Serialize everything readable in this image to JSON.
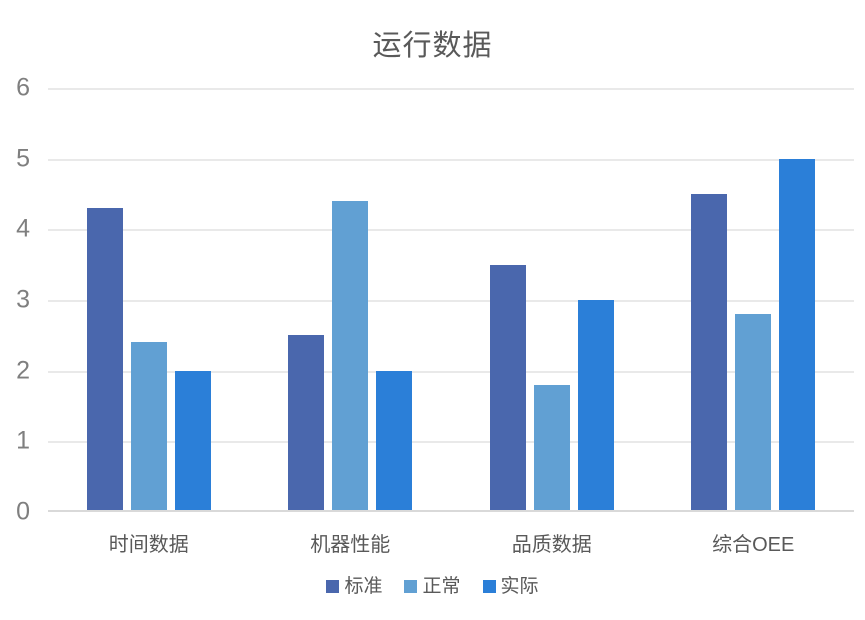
{
  "chart_data": {
    "type": "bar",
    "title": "运行数据",
    "categories": [
      "时间数据",
      "机器性能",
      "品质数据",
      "综合OEE"
    ],
    "series": [
      {
        "name": "标准",
        "color": "#4A67AD",
        "values": [
          4.3,
          2.5,
          3.5,
          4.5
        ]
      },
      {
        "name": "正常",
        "color": "#61A0D3",
        "values": [
          2.4,
          4.4,
          1.8,
          2.8
        ]
      },
      {
        "name": "实际",
        "color": "#2B7FD8",
        "values": [
          2.0,
          2.0,
          3.0,
          5.0
        ]
      }
    ],
    "xlabel": "",
    "ylabel": "",
    "ylim": [
      0,
      6
    ],
    "yticks": [
      0,
      1,
      2,
      3,
      4,
      5,
      6
    ],
    "grid": true,
    "legend_position": "bottom"
  },
  "colors": {
    "background": "#FFFFFF",
    "title_text": "#595959",
    "y_tick_text": "#7F7F7F",
    "category_text": "#595959",
    "legend_text": "#595959",
    "gridline": "#E9E9E9",
    "axis_line": "#D9D9D9"
  }
}
